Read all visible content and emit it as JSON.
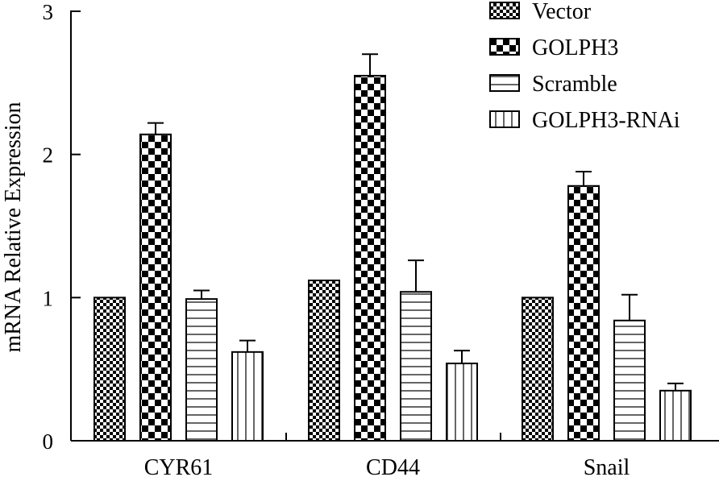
{
  "chart_data": {
    "type": "bar",
    "title": "",
    "xlabel": "",
    "ylabel": "mRNA Relative Expression",
    "ylim": [
      0,
      3
    ],
    "yticks": [
      0,
      1,
      2,
      3
    ],
    "categories": [
      "CYR61",
      "CD44",
      "Snail"
    ],
    "grid": false,
    "legend_position": "top-right",
    "series": [
      {
        "name": "Vector",
        "pattern": "fine-checker",
        "values": [
          1.0,
          1.12,
          1.0
        ],
        "errors": [
          0,
          0,
          0
        ]
      },
      {
        "name": "GOLPH3",
        "pattern": "checker",
        "values": [
          2.14,
          2.55,
          1.78
        ],
        "errors": [
          0.08,
          0.15,
          0.1
        ]
      },
      {
        "name": "Scramble",
        "pattern": "horizontal-lines",
        "values": [
          0.99,
          1.04,
          0.84
        ],
        "errors": [
          0.06,
          0.22,
          0.18
        ]
      },
      {
        "name": "GOLPH3-RNAi",
        "pattern": "vertical-lines",
        "values": [
          0.62,
          0.54,
          0.35
        ],
        "errors": [
          0.08,
          0.09,
          0.05
        ]
      }
    ]
  }
}
